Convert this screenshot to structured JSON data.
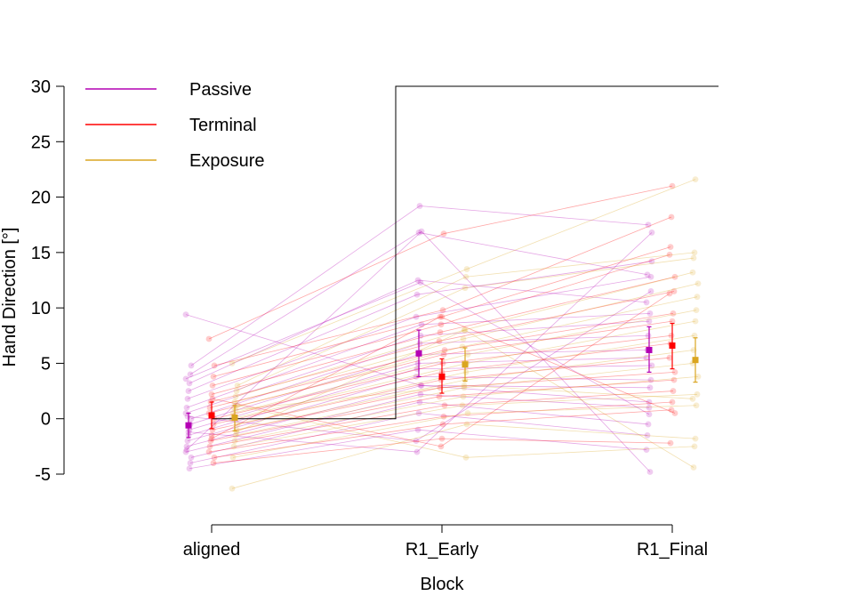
{
  "chart_data": {
    "type": "scatter",
    "xlabel": "Block",
    "ylabel": "Hand Direction [°]",
    "categories": [
      "aligned",
      "R1_Early",
      "R1_Final"
    ],
    "ylim": [
      -5,
      30
    ],
    "yticks": [
      -5,
      0,
      5,
      10,
      15,
      20,
      25,
      30
    ],
    "grid": false,
    "legend_position": "top-left",
    "rotation_schedule": [
      {
        "block": "aligned",
        "value": 0
      },
      {
        "block": "R1_Early",
        "value": 30
      },
      {
        "block": "R1_Final",
        "value": 30
      }
    ],
    "series": [
      {
        "name": "Passive",
        "color": "#b400b4",
        "means": [
          -0.6,
          5.9,
          6.2
        ],
        "ci": [
          [
            -1.7,
            0.5
          ],
          [
            3.8,
            8.0
          ],
          [
            4.2,
            8.3
          ]
        ],
        "participants": [
          [
            9.4,
            3.0,
            1.5
          ],
          [
            4.8,
            19.2,
            17.5
          ],
          [
            4.0,
            16.8,
            13.0
          ],
          [
            3.2,
            12.5,
            10.5
          ],
          [
            2.5,
            11.2,
            14.2
          ],
          [
            1.8,
            9.2,
            12.8
          ],
          [
            1.0,
            8.5,
            9.5
          ],
          [
            0.5,
            7.5,
            8.8
          ],
          [
            0.0,
            6.8,
            7.5
          ],
          [
            -0.5,
            5.8,
            6.2
          ],
          [
            -1.0,
            5.0,
            5.5
          ],
          [
            -1.5,
            4.5,
            4.8
          ],
          [
            -2.0,
            3.8,
            3.5
          ],
          [
            -2.5,
            3.0,
            2.8
          ],
          [
            -3.0,
            2.2,
            1.0
          ],
          [
            -3.5,
            1.5,
            -0.5
          ],
          [
            -4.0,
            0.5,
            -1.5
          ],
          [
            -4.5,
            -1.0,
            -2.8
          ],
          [
            -1.2,
            -3.0,
            16.8
          ],
          [
            0.2,
            -2.0,
            11.5
          ],
          [
            -2.8,
            16.9,
            -4.8
          ],
          [
            3.6,
            12.3,
            0.4
          ]
        ]
      },
      {
        "name": "Terminal",
        "color": "#ff0000",
        "means": [
          0.3,
          3.8,
          6.6
        ],
        "ci": [
          [
            -0.9,
            1.5
          ],
          [
            2.3,
            5.4
          ],
          [
            4.5,
            8.6
          ]
        ],
        "participants": [
          [
            7.2,
            16.7,
            21.0
          ],
          [
            4.8,
            9.8,
            18.2
          ],
          [
            3.8,
            9.2,
            15.5
          ],
          [
            3.0,
            8.5,
            14.8
          ],
          [
            2.2,
            7.8,
            12.8
          ],
          [
            1.5,
            7.0,
            11.5
          ],
          [
            1.0,
            6.2,
            9.5
          ],
          [
            0.5,
            5.8,
            8.8
          ],
          [
            0.0,
            5.0,
            7.5
          ],
          [
            -0.5,
            4.2,
            6.8
          ],
          [
            -1.0,
            3.5,
            5.5
          ],
          [
            -1.5,
            2.8,
            4.2
          ],
          [
            -2.0,
            2.0,
            3.5
          ],
          [
            -2.5,
            1.2,
            2.5
          ],
          [
            -3.0,
            0.2,
            1.5
          ],
          [
            -3.5,
            -0.5,
            0.8
          ],
          [
            -4.0,
            -1.8,
            -2.2
          ],
          [
            1.8,
            -2.5,
            11.3
          ],
          [
            -1.8,
            9.2,
            0.5
          ]
        ]
      },
      {
        "name": "Exposure",
        "color": "#daa520",
        "means": [
          0.1,
          4.9,
          5.3
        ],
        "ci": [
          [
            -1.1,
            1.2
          ],
          [
            3.4,
            6.4
          ],
          [
            3.3,
            7.3
          ]
        ],
        "participants": [
          [
            5.0,
            13.5,
            21.6
          ],
          [
            3.0,
            12.8,
            15.0
          ],
          [
            2.5,
            11.8,
            14.5
          ],
          [
            2.0,
            8.0,
            13.2
          ],
          [
            1.5,
            7.2,
            12.2
          ],
          [
            1.0,
            6.5,
            11.0
          ],
          [
            0.5,
            5.8,
            9.8
          ],
          [
            0.0,
            5.0,
            8.8
          ],
          [
            -0.5,
            4.2,
            7.5
          ],
          [
            -1.0,
            3.5,
            6.2
          ],
          [
            -1.5,
            2.8,
            5.0
          ],
          [
            -2.0,
            2.0,
            3.8
          ],
          [
            -2.5,
            1.2,
            2.2
          ],
          [
            -3.5,
            0.5,
            1.2
          ],
          [
            -6.3,
            -0.5,
            -1.8
          ],
          [
            1.2,
            -3.5,
            -2.5
          ],
          [
            -1.2,
            8.0,
            -4.4
          ],
          [
            0.8,
            3.0,
            1.8
          ]
        ]
      }
    ]
  }
}
